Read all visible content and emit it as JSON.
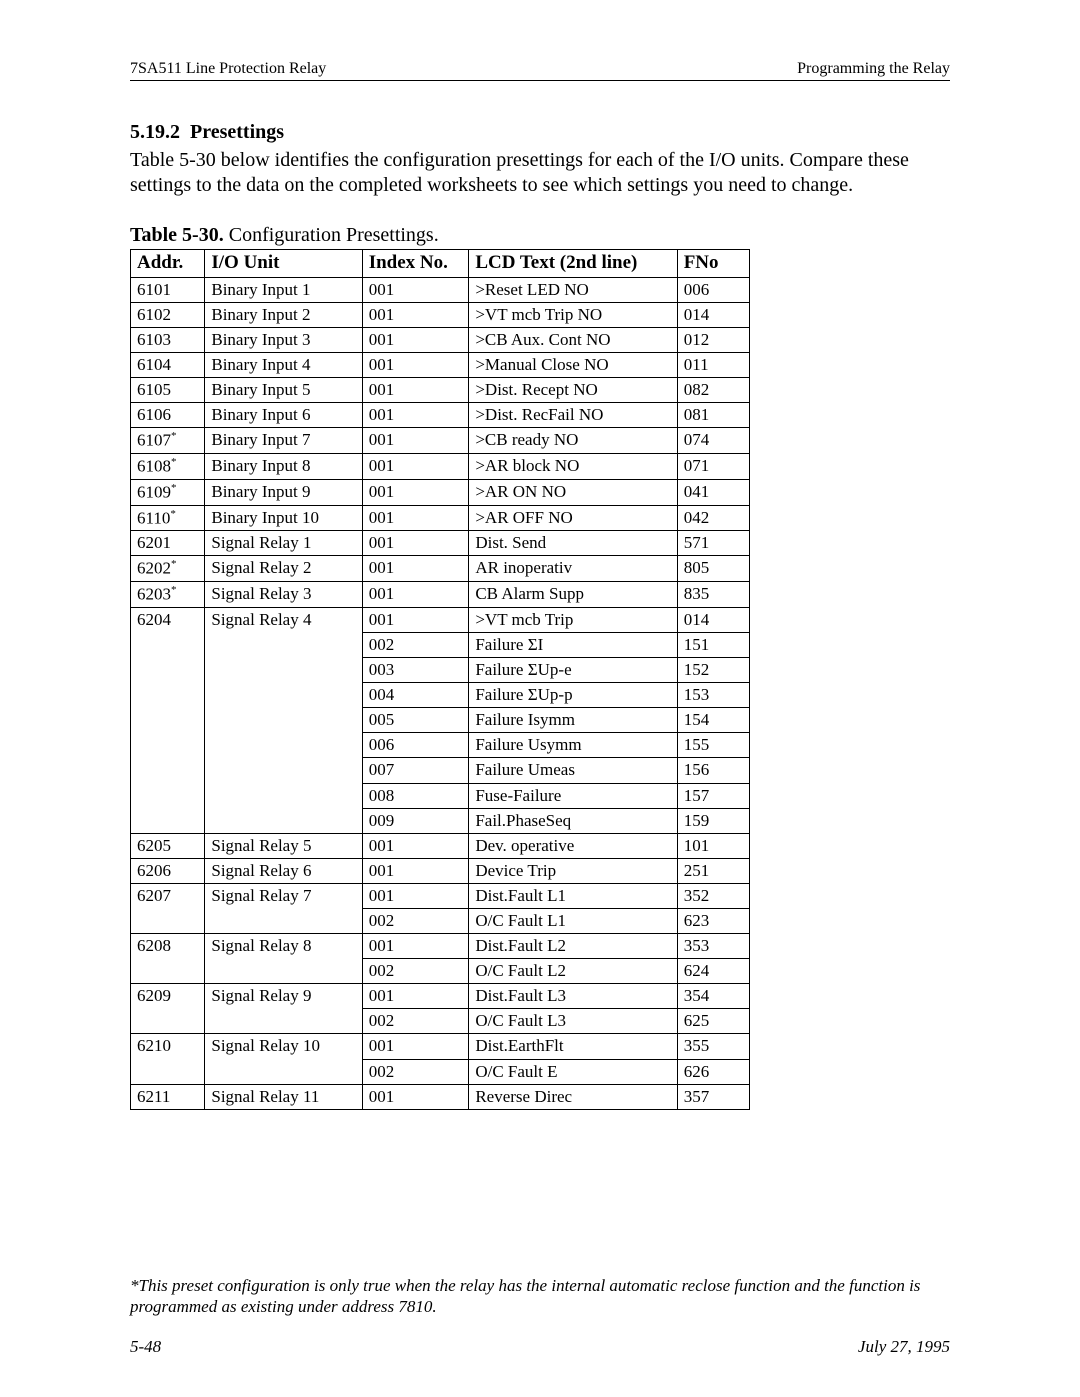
{
  "header": {
    "left": "7SA511 Line Protection Relay",
    "right": "Programming the Relay"
  },
  "section": {
    "number": "5.19.2",
    "title": "Presettings"
  },
  "intro": "Table 5-30 below identifies the configuration presettings for each of the I/O units. Compare these settings to the data on the completed worksheets to see which settings you need to change.",
  "caption": {
    "label": "Table 5-30.",
    "text": "Configuration Presettings."
  },
  "columns": {
    "addr": "Addr.",
    "unit": "I/O Unit",
    "index": "Index No.",
    "lcd": "LCD Text (2nd line)",
    "fno": "FNo"
  },
  "rows": [
    {
      "addr": "6101",
      "unit": "Binary Input 1",
      "idx": "001",
      "lcd": ">Reset LED NO",
      "fno": "006"
    },
    {
      "addr": "6102",
      "unit": "Binary Input 2",
      "idx": "001",
      "lcd": ">VT mcb Trip NO",
      "fno": "014"
    },
    {
      "addr": "6103",
      "unit": "Binary Input 3",
      "idx": "001",
      "lcd": ">CB Aux. Cont NO",
      "fno": "012"
    },
    {
      "addr": "6104",
      "unit": "Binary Input 4",
      "idx": "001",
      "lcd": ">Manual Close NO",
      "fno": "011"
    },
    {
      "addr": "6105",
      "unit": "Binary Input 5",
      "idx": "001",
      "lcd": ">Dist. Recept NO",
      "fno": "082"
    },
    {
      "addr": "6106",
      "unit": "Binary Input 6",
      "idx": "001",
      "lcd": ">Dist. RecFail NO",
      "fno": "081"
    },
    {
      "addr": "6107",
      "star": true,
      "unit": "Binary Input 7",
      "idx": "001",
      "lcd": ">CB ready NO",
      "fno": "074"
    },
    {
      "addr": "6108",
      "star": true,
      "unit": "Binary Input 8",
      "idx": "001",
      "lcd": ">AR block NO",
      "fno": "071"
    },
    {
      "addr": "6109",
      "star": true,
      "unit": "Binary Input 9",
      "idx": "001",
      "lcd": ">AR ON NO",
      "fno": "041"
    },
    {
      "addr": "6110",
      "star": true,
      "unit": "Binary Input 10",
      "idx": "001",
      "lcd": ">AR OFF NO",
      "fno": "042"
    },
    {
      "addr": "6201",
      "unit": "Signal Relay 1",
      "idx": "001",
      "lcd": "Dist. Send",
      "fno": "571"
    },
    {
      "addr": "6202",
      "star": true,
      "unit": "Signal Relay 2",
      "idx": "001",
      "lcd": "AR inoperativ",
      "fno": "805"
    },
    {
      "addr": "6203",
      "star": true,
      "unit": "Signal Relay 3",
      "idx": "001",
      "lcd": "CB Alarm Supp",
      "fno": "835"
    },
    {
      "addr": "6204",
      "unit": "Signal Relay 4",
      "span": 9,
      "sub": [
        {
          "idx": "001",
          "lcd": ">VT mcb Trip",
          "fno": "014"
        },
        {
          "idx": "002",
          "lcd": "Failure ΣI",
          "fno": "151",
          "tall": true
        },
        {
          "idx": "003",
          "lcd": "Failure ΣUp-e",
          "fno": "152",
          "tall": true
        },
        {
          "idx": "004",
          "lcd": "Failure ΣUp-p",
          "fno": "153",
          "tall": true
        },
        {
          "idx": "005",
          "lcd": "Failure Isymm",
          "fno": "154"
        },
        {
          "idx": "006",
          "lcd": "Failure Usymm",
          "fno": "155"
        },
        {
          "idx": "007",
          "lcd": "Failure Umeas",
          "fno": "156"
        },
        {
          "idx": "008",
          "lcd": "Fuse-Failure",
          "fno": "157"
        },
        {
          "idx": "009",
          "lcd": "Fail.PhaseSeq",
          "fno": "159"
        }
      ]
    },
    {
      "addr": "6205",
      "unit": "Signal Relay 5",
      "idx": "001",
      "lcd": "Dev. operative",
      "fno": "101"
    },
    {
      "addr": "6206",
      "unit": "Signal Relay 6",
      "idx": "001",
      "lcd": "Device Trip",
      "fno": "251"
    },
    {
      "addr": "6207",
      "unit": "Signal Relay 7",
      "span": 2,
      "sub": [
        {
          "idx": "001",
          "lcd": "Dist.Fault L1",
          "fno": "352"
        },
        {
          "idx": "002",
          "lcd": "O/C Fault L1",
          "fno": "623"
        }
      ]
    },
    {
      "addr": "6208",
      "unit": "Signal Relay 8",
      "span": 2,
      "sub": [
        {
          "idx": "001",
          "lcd": "Dist.Fault L2",
          "fno": "353"
        },
        {
          "idx": "002",
          "lcd": "O/C Fault L2",
          "fno": "624"
        }
      ]
    },
    {
      "addr": "6209",
      "unit": "Signal Relay 9",
      "span": 2,
      "sub": [
        {
          "idx": "001",
          "lcd": "Dist.Fault L3",
          "fno": "354"
        },
        {
          "idx": "002",
          "lcd": "O/C Fault L3",
          "fno": "625"
        }
      ]
    },
    {
      "addr": "6210",
      "unit": "Signal Relay 10",
      "span": 2,
      "sub": [
        {
          "idx": "001",
          "lcd": "Dist.EarthFlt",
          "fno": "355"
        },
        {
          "idx": "002",
          "lcd": "O/C Fault E",
          "fno": "626"
        }
      ]
    },
    {
      "addr": "6211",
      "unit": "Signal Relay 11",
      "idx": "001",
      "lcd": "Reverse Direc",
      "fno": "357"
    }
  ],
  "footnote": "*This preset configuration is only true when the relay has the internal automatic reclose function and the function is programmed as existing under address 7810.",
  "footer": {
    "left": "5-48",
    "right": "July 27, 1995"
  }
}
